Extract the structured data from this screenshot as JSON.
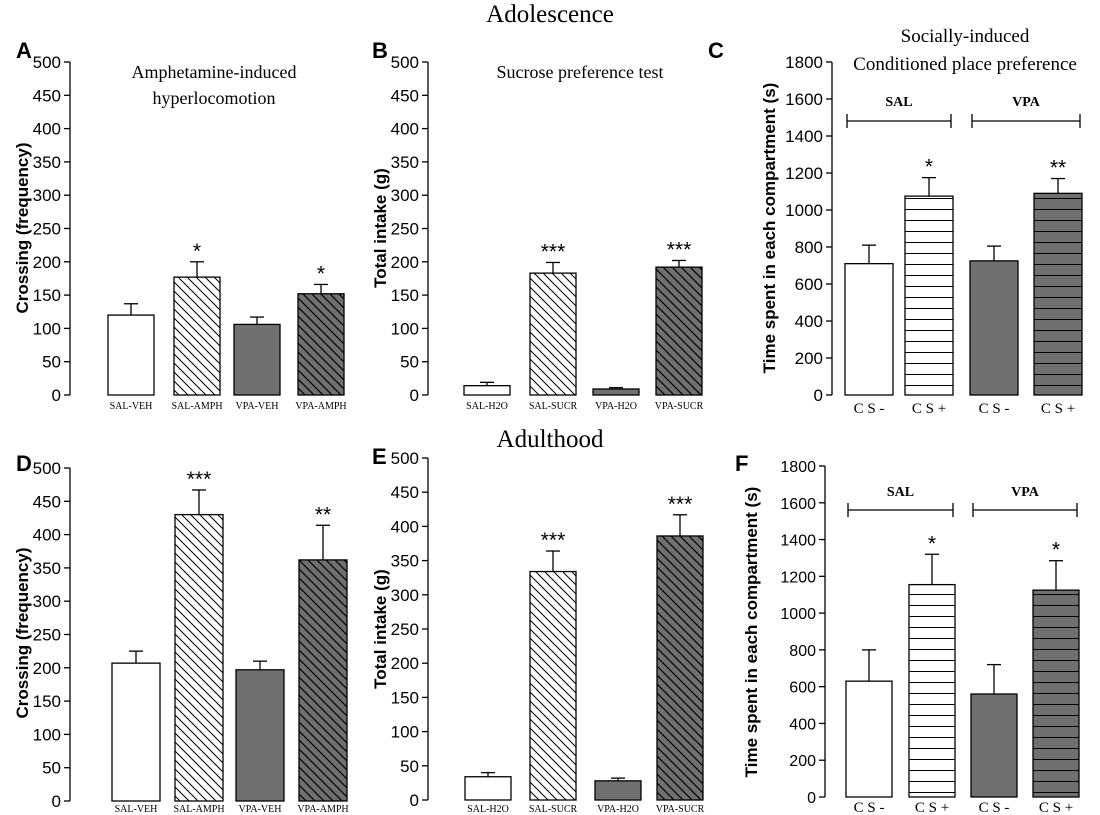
{
  "section_titles": {
    "top": "Adolescence",
    "bottom": "Adulthood"
  },
  "colors": {
    "ink": "#000000",
    "white_fill": "#ffffff",
    "gray_fill": "#707070"
  },
  "chart_data": [
    {
      "id": "A",
      "panel_letter": "A",
      "type": "bar",
      "title_lines": [
        "Amphetamine-induced",
        "hyperlocomotion"
      ],
      "ylabel": "Crossing (frequency)",
      "ylim": [
        0,
        500
      ],
      "yticks": [
        0,
        50,
        100,
        150,
        200,
        250,
        300,
        350,
        400,
        450,
        500
      ],
      "categories": [
        "SAL-VEH",
        "SAL-AMPH",
        "VPA-VEH",
        "VPA-AMPH"
      ],
      "values": [
        120,
        177,
        106,
        152
      ],
      "errors": [
        17,
        23,
        11,
        14
      ],
      "significance": [
        "",
        "*",
        "",
        "*"
      ],
      "fills": [
        "white",
        "diag",
        "gray",
        "gray-diag"
      ],
      "groups": []
    },
    {
      "id": "B",
      "panel_letter": "B",
      "type": "bar",
      "title_lines": [
        "Sucrose preference test"
      ],
      "ylabel": "Total intake (g)",
      "ylim": [
        0,
        500
      ],
      "yticks": [
        0,
        50,
        100,
        150,
        200,
        250,
        300,
        350,
        400,
        450,
        500
      ],
      "categories": [
        "SAL-H2O",
        "SAL-SUCR",
        "VPA-H2O",
        "VPA-SUCR"
      ],
      "values": [
        14,
        183,
        9,
        192
      ],
      "errors": [
        5,
        16,
        2,
        10
      ],
      "significance": [
        "",
        "***",
        "",
        "***"
      ],
      "fills": [
        "white",
        "diag",
        "gray",
        "gray-diag"
      ],
      "groups": []
    },
    {
      "id": "C",
      "panel_letter": "C",
      "type": "bar",
      "title_lines": [
        "Socially-induced",
        "Conditioned place preference"
      ],
      "ylabel": "Time spent in each compartment (s)",
      "ylim": [
        0,
        1800
      ],
      "yticks": [
        0,
        200,
        400,
        600,
        800,
        1000,
        1200,
        1400,
        1600,
        1800
      ],
      "categories": [
        "C S -",
        "C S +",
        "C S -",
        "C S +"
      ],
      "values": [
        710,
        1075,
        725,
        1090
      ],
      "errors": [
        100,
        100,
        80,
        80
      ],
      "significance": [
        "",
        "*",
        "",
        "**"
      ],
      "fills": [
        "white",
        "hstripe",
        "gray",
        "gray-hstripe"
      ],
      "groups": [
        {
          "label": "SAL",
          "bars": [
            0,
            1
          ]
        },
        {
          "label": "VPA",
          "bars": [
            2,
            3
          ]
        }
      ]
    },
    {
      "id": "D",
      "panel_letter": "D",
      "type": "bar",
      "title_lines": [],
      "ylabel": "Crossing (frequency)",
      "ylim": [
        0,
        500
      ],
      "yticks": [
        0,
        50,
        100,
        150,
        200,
        250,
        300,
        350,
        400,
        450,
        500
      ],
      "categories": [
        "SAL-VEH",
        "SAL-AMPH",
        "VPA-VEH",
        "VPA-AMPH"
      ],
      "values": [
        207,
        430,
        197,
        362
      ],
      "errors": [
        18,
        37,
        13,
        52
      ],
      "significance": [
        "",
        "***",
        "",
        "**"
      ],
      "fills": [
        "white",
        "diag",
        "gray",
        "gray-diag"
      ],
      "groups": []
    },
    {
      "id": "E",
      "panel_letter": "E",
      "type": "bar",
      "title_lines": [],
      "ylabel": "Total intake (g)",
      "ylim": [
        0,
        500
      ],
      "yticks": [
        0,
        50,
        100,
        150,
        200,
        250,
        300,
        350,
        400,
        450,
        500
      ],
      "categories": [
        "SAL-H2O",
        "SAL-SUCR",
        "VPA-H2O",
        "VPA-SUCR"
      ],
      "values": [
        34,
        334,
        28,
        386
      ],
      "errors": [
        6,
        30,
        4,
        31
      ],
      "significance": [
        "",
        "***",
        "",
        "***"
      ],
      "fills": [
        "white",
        "diag",
        "gray",
        "gray-diag"
      ],
      "groups": []
    },
    {
      "id": "F",
      "panel_letter": "F",
      "type": "bar",
      "title_lines": [],
      "ylabel": "Time spent in each compartment (s)",
      "ylim": [
        0,
        1800
      ],
      "yticks": [
        0,
        200,
        400,
        600,
        800,
        1000,
        1200,
        1400,
        1600,
        1800
      ],
      "categories": [
        "C S -",
        "C S +",
        "C S -",
        "C S +"
      ],
      "values": [
        630,
        1155,
        560,
        1125
      ],
      "errors": [
        170,
        165,
        160,
        160
      ],
      "significance": [
        "",
        "*",
        "",
        "*"
      ],
      "fills": [
        "white",
        "hstripe",
        "gray",
        "gray-hstripe"
      ],
      "groups": [
        {
          "label": "SAL",
          "bars": [
            0,
            1
          ]
        },
        {
          "label": "VPA",
          "bars": [
            2,
            3
          ]
        }
      ]
    }
  ]
}
